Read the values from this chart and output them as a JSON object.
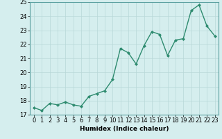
{
  "x": [
    0,
    1,
    2,
    3,
    4,
    5,
    6,
    7,
    8,
    9,
    10,
    11,
    12,
    13,
    14,
    15,
    16,
    17,
    18,
    19,
    20,
    21,
    22,
    23
  ],
  "y": [
    17.5,
    17.3,
    17.8,
    17.7,
    17.9,
    17.7,
    17.6,
    18.3,
    18.5,
    18.7,
    19.5,
    21.7,
    21.4,
    20.6,
    21.9,
    22.9,
    22.7,
    21.2,
    22.3,
    22.4,
    24.4,
    24.8,
    23.3,
    22.6
  ],
  "xlabel": "Humidex (Indice chaleur)",
  "ylabel": "",
  "ylim": [
    17,
    25
  ],
  "xlim": [
    -0.5,
    23.5
  ],
  "yticks": [
    17,
    18,
    19,
    20,
    21,
    22,
    23,
    24,
    25
  ],
  "xticks": [
    0,
    1,
    2,
    3,
    4,
    5,
    6,
    7,
    8,
    9,
    10,
    11,
    12,
    13,
    14,
    15,
    16,
    17,
    18,
    19,
    20,
    21,
    22,
    23
  ],
  "line_color": "#2e8b6f",
  "marker": "D",
  "marker_size": 2.0,
  "line_width": 1.0,
  "bg_color": "#d5eeee",
  "grid_color": "#b8d8d8",
  "label_fontsize": 6.5,
  "tick_fontsize": 6.0
}
